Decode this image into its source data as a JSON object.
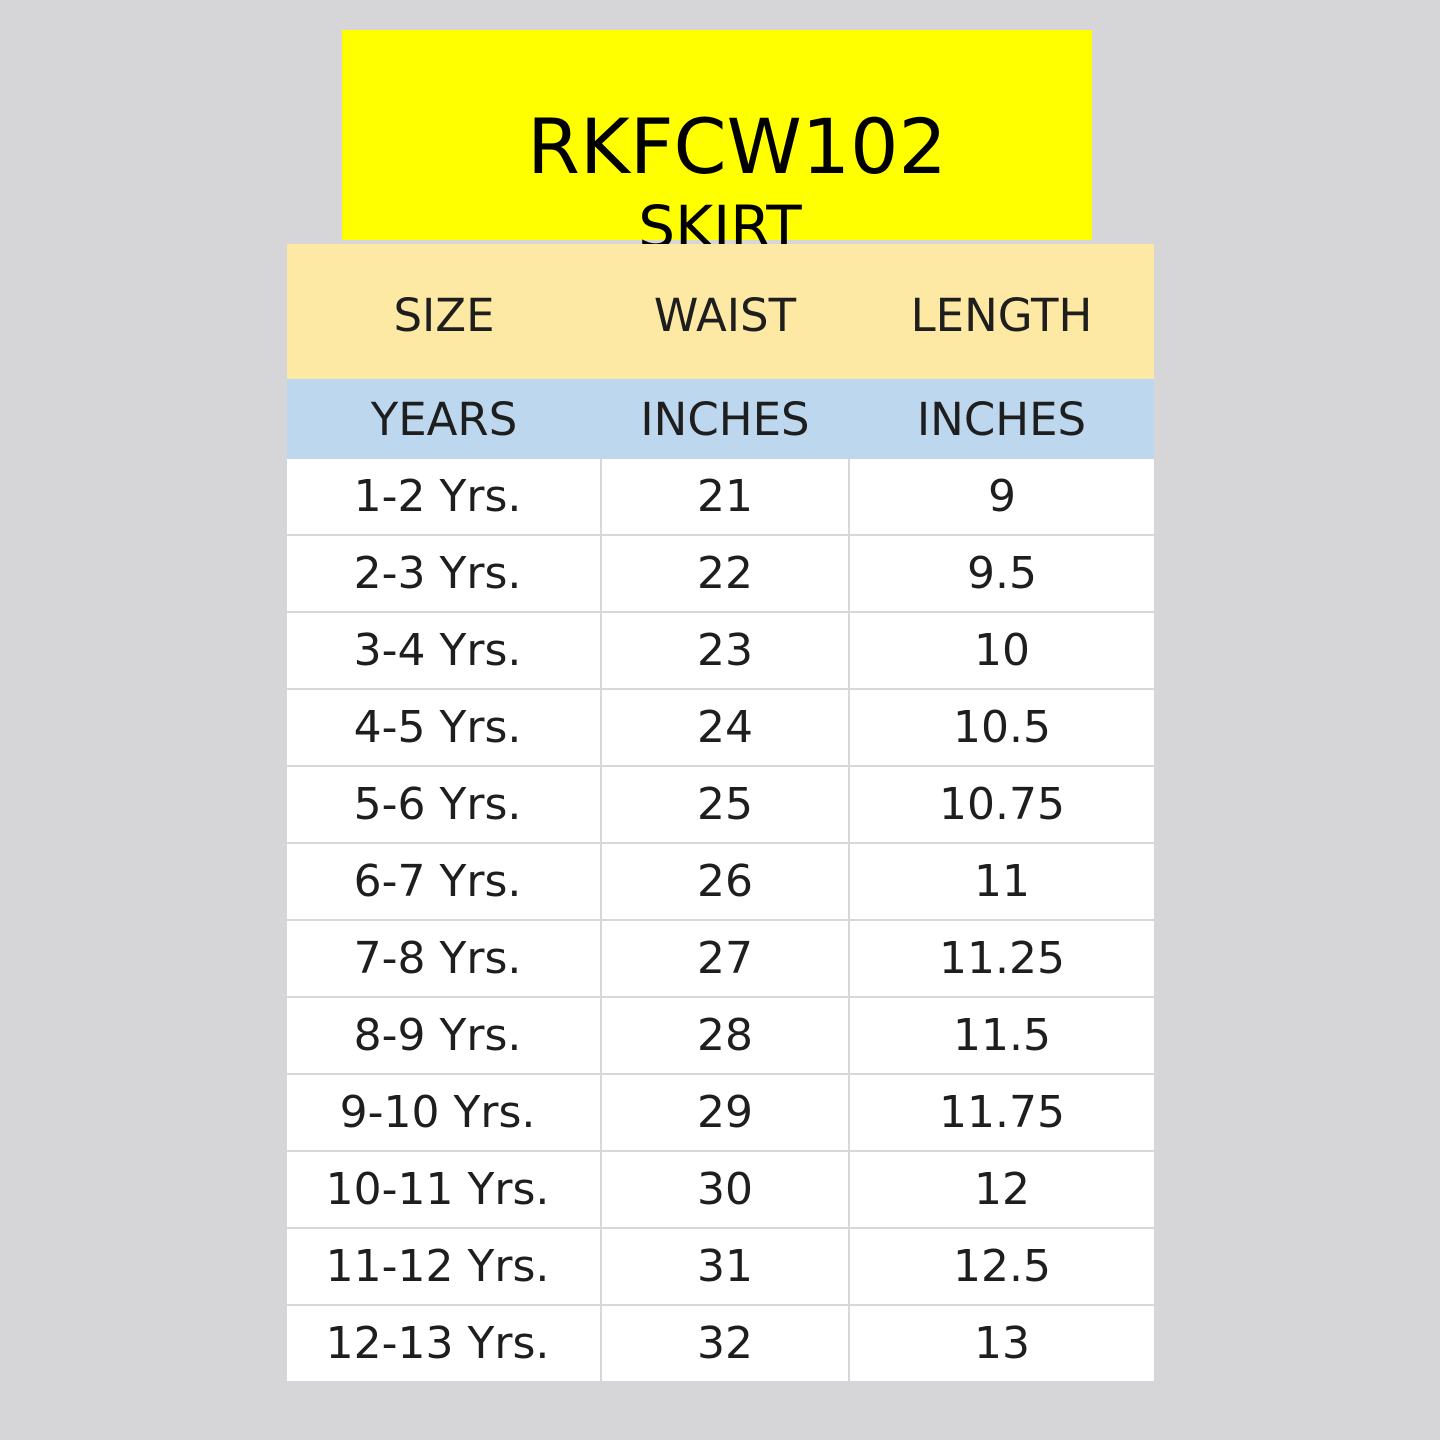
{
  "header": {
    "product_code": "RKFCW102",
    "product_type": "SKIRT",
    "accent_color": "#ffff00"
  },
  "table": {
    "columns": [
      "SIZE",
      "WAIST",
      "LENGTH"
    ],
    "units": [
      "YEARS",
      "INCHES",
      "INCHES"
    ],
    "header_color": "#fde8a4",
    "unit_row_color": "#bdd7ee",
    "rows": [
      [
        "1-2 Yrs.",
        "21",
        "9"
      ],
      [
        "2-3 Yrs.",
        "22",
        "9.5"
      ],
      [
        "3-4 Yrs.",
        "23",
        "10"
      ],
      [
        "4-5 Yrs.",
        "24",
        "10.5"
      ],
      [
        "5-6 Yrs.",
        "25",
        "10.75"
      ],
      [
        "6-7 Yrs.",
        "26",
        "11"
      ],
      [
        "7-8 Yrs.",
        "27",
        "11.25"
      ],
      [
        "8-9 Yrs.",
        "28",
        "11.5"
      ],
      [
        "9-10 Yrs.",
        "29",
        "11.75"
      ],
      [
        "10-11 Yrs.",
        "30",
        "12"
      ],
      [
        "11-12 Yrs.",
        "31",
        "12.5"
      ],
      [
        "12-13 Yrs.",
        "32",
        "13"
      ]
    ]
  }
}
